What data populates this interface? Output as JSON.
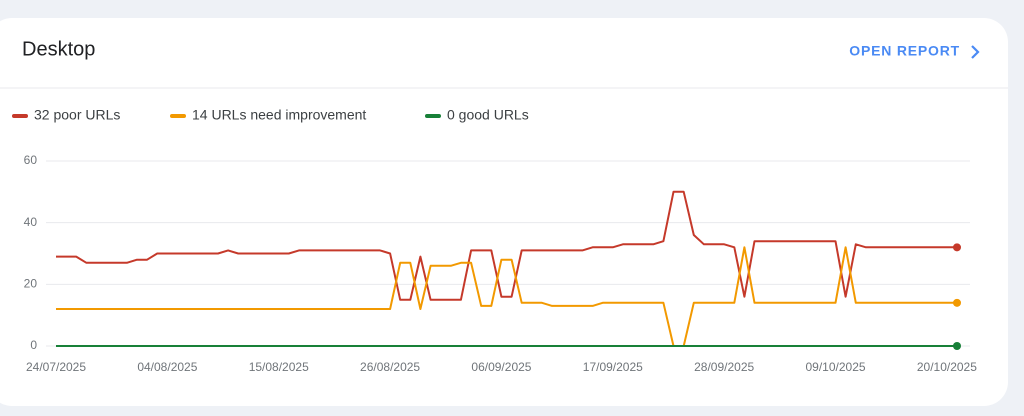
{
  "header": {
    "title": "Desktop",
    "link": "OPEN REPORT"
  },
  "chart_data": {
    "type": "line",
    "categories": [
      "24/07/2025",
      null,
      null,
      null,
      null,
      null,
      null,
      null,
      null,
      null,
      null,
      "04/08/2025",
      null,
      null,
      null,
      null,
      null,
      null,
      null,
      null,
      null,
      null,
      "15/08/2025",
      null,
      null,
      null,
      null,
      null,
      null,
      null,
      null,
      null,
      null,
      "26/08/2025",
      null,
      null,
      null,
      null,
      null,
      null,
      null,
      null,
      null,
      null,
      "06/09/2025",
      null,
      null,
      null,
      null,
      null,
      null,
      null,
      null,
      null,
      null,
      "17/09/2025",
      null,
      null,
      null,
      null,
      null,
      null,
      null,
      null,
      null,
      null,
      "28/09/2025",
      null,
      null,
      null,
      null,
      null,
      null,
      null,
      null,
      null,
      null,
      "09/10/2025",
      null,
      null,
      null,
      null,
      null,
      null,
      null,
      null,
      null,
      null,
      "20/10/2025",
      null
    ],
    "series": [
      {
        "name": "32 poor URLs",
        "color": "#c5392a",
        "values": [
          29,
          29,
          29,
          27,
          27,
          27,
          27,
          27,
          28,
          28,
          30,
          30,
          30,
          30,
          30,
          30,
          30,
          31,
          30,
          30,
          30,
          30,
          30,
          30,
          31,
          31,
          31,
          31,
          31,
          31,
          31,
          31,
          31,
          30,
          15,
          15,
          29,
          15,
          15,
          15,
          15,
          31,
          31,
          31,
          16,
          16,
          31,
          31,
          31,
          31,
          31,
          31,
          31,
          32,
          32,
          32,
          33,
          33,
          33,
          33,
          34,
          50,
          50,
          36,
          33,
          33,
          33,
          32,
          16,
          34,
          34,
          34,
          34,
          34,
          34,
          34,
          34,
          34,
          16,
          33,
          32,
          32,
          32,
          32,
          32,
          32,
          32,
          32,
          32,
          32
        ]
      },
      {
        "name": "14 URLs need improvement",
        "color": "#f29900",
        "values": [
          12,
          12,
          12,
          12,
          12,
          12,
          12,
          12,
          12,
          12,
          12,
          12,
          12,
          12,
          12,
          12,
          12,
          12,
          12,
          12,
          12,
          12,
          12,
          12,
          12,
          12,
          12,
          12,
          12,
          12,
          12,
          12,
          12,
          12,
          27,
          27,
          12,
          26,
          26,
          26,
          27,
          27,
          13,
          13,
          28,
          28,
          14,
          14,
          14,
          13,
          13,
          13,
          13,
          13,
          14,
          14,
          14,
          14,
          14,
          14,
          14,
          0,
          0,
          14,
          14,
          14,
          14,
          14,
          32,
          14,
          14,
          14,
          14,
          14,
          14,
          14,
          14,
          14,
          32,
          14,
          14,
          14,
          14,
          14,
          14,
          14,
          14,
          14,
          14,
          14
        ]
      },
      {
        "name": "0 good URLs",
        "color": "#188038",
        "values": [
          0,
          0,
          0,
          0,
          0,
          0,
          0,
          0,
          0,
          0,
          0,
          0,
          0,
          0,
          0,
          0,
          0,
          0,
          0,
          0,
          0,
          0,
          0,
          0,
          0,
          0,
          0,
          0,
          0,
          0,
          0,
          0,
          0,
          0,
          0,
          0,
          0,
          0,
          0,
          0,
          0,
          0,
          0,
          0,
          0,
          0,
          0,
          0,
          0,
          0,
          0,
          0,
          0,
          0,
          0,
          0,
          0,
          0,
          0,
          0,
          0,
          0,
          0,
          0,
          0,
          0,
          0,
          0,
          0,
          0,
          0,
          0,
          0,
          0,
          0,
          0,
          0,
          0,
          0,
          0,
          0,
          0,
          0,
          0,
          0,
          0,
          0,
          0,
          0,
          0
        ]
      }
    ],
    "ylim": [
      0,
      60
    ],
    "yticks": [
      0,
      20,
      40,
      60
    ],
    "grid": true
  }
}
